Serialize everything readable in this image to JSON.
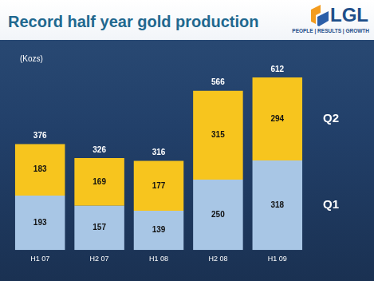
{
  "chart_data": {
    "type": "bar",
    "title": "Record half year gold production",
    "y_label": "(Kozs)",
    "categories": [
      "H1 07",
      "H2 07",
      "H1 08",
      "H2 08",
      "H1 09"
    ],
    "series": [
      {
        "name": "Q1",
        "color": "#a8c6e5",
        "values": [
          193,
          157,
          139,
          250,
          318
        ]
      },
      {
        "name": "Q2",
        "color": "#f7c51e",
        "values": [
          183,
          169,
          177,
          315,
          294
        ]
      }
    ],
    "totals": [
      376,
      326,
      316,
      566,
      612
    ],
    "stacked": true,
    "data_labels": true,
    "legend": "right",
    "tick_labels": "x",
    "grid": false,
    "ylim": [
      0,
      700
    ]
  },
  "logo": {
    "name": "LGL",
    "tagline": "PEOPLE | RESULTS | GROWTH"
  }
}
